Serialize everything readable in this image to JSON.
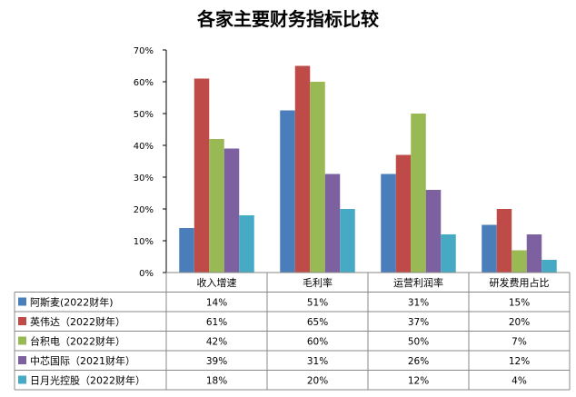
{
  "chart_data": {
    "type": "bar",
    "title": "各家主要财务指标比较",
    "categories": [
      "收入增速",
      "毛利率",
      "运营利润率",
      "研发费用占比"
    ],
    "ylim": [
      0,
      70
    ],
    "y_ticks": [
      "0%",
      "10%",
      "20%",
      "30%",
      "40%",
      "50%",
      "60%",
      "70%"
    ],
    "grid": false,
    "legend": "data-table-left",
    "series": [
      {
        "name": "阿斯麦(2022财年)",
        "color": "#4a7ebb",
        "values": [
          14,
          51,
          31,
          15
        ],
        "labels": [
          "14%",
          "51%",
          "31%",
          "15%"
        ]
      },
      {
        "name": "英伟达（2022财年）",
        "color": "#be4b48",
        "values": [
          61,
          65,
          37,
          20
        ],
        "labels": [
          "61%",
          "65%",
          "37%",
          "20%"
        ]
      },
      {
        "name": "台积电（2022财年）",
        "color": "#98b954",
        "values": [
          42,
          60,
          50,
          7
        ],
        "labels": [
          "42%",
          "60%",
          "50%",
          "7%"
        ]
      },
      {
        "name": "中芯国际（2021财年）",
        "color": "#7d60a0",
        "values": [
          39,
          31,
          26,
          12
        ],
        "labels": [
          "39%",
          "31%",
          "26%",
          "12%"
        ]
      },
      {
        "name": "日月光控股（2022财年）",
        "color": "#46aac5",
        "values": [
          18,
          20,
          12,
          4
        ],
        "labels": [
          "18%",
          "20%",
          "12%",
          "4%"
        ]
      }
    ]
  }
}
